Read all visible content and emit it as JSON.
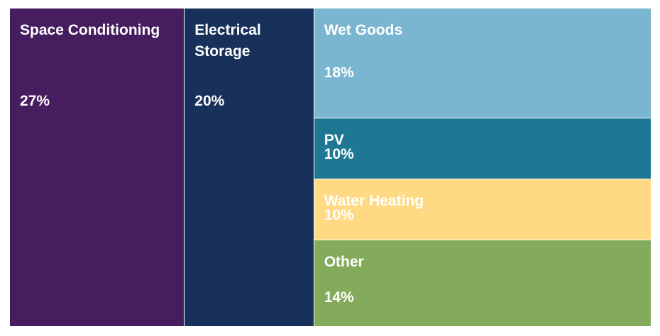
{
  "chart_data": {
    "type": "treemap",
    "title": "",
    "categories": [
      "Space Conditioning",
      "Electrical Storage",
      "Wet Goods",
      "PV",
      "Water Heating",
      "Other"
    ],
    "values": [
      27,
      20,
      18,
      10,
      10,
      14
    ],
    "labels": [
      "27%",
      "20%",
      "18%",
      "10%",
      "10%",
      "14%"
    ],
    "colors": [
      "#461D5E",
      "#17315A",
      "#7AB6D0",
      "#1F7893",
      "#FFD983",
      "#84AB5B"
    ]
  }
}
